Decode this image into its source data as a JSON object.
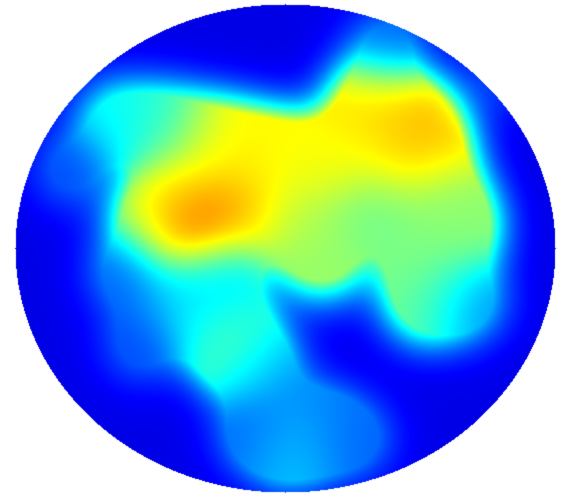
{
  "chart_data": {
    "type": "heatmap",
    "colormap": "jet",
    "shape": "circular",
    "background_color": "#ffffff",
    "value_range": [
      0,
      1
    ],
    "x_range": [
      0,
      1
    ],
    "y_range": [
      0,
      1
    ],
    "base_value": 0.1,
    "grid": false,
    "legend": "none",
    "points": [
      {
        "x": 0.66,
        "y": 0.2,
        "value": 0.66
      },
      {
        "x": 0.74,
        "y": 0.24,
        "value": 0.7
      },
      {
        "x": 0.76,
        "y": 0.31,
        "value": 0.68
      },
      {
        "x": 0.64,
        "y": 0.3,
        "value": 0.63
      },
      {
        "x": 0.55,
        "y": 0.32,
        "value": 0.62
      },
      {
        "x": 0.46,
        "y": 0.3,
        "value": 0.63
      },
      {
        "x": 0.37,
        "y": 0.28,
        "value": 0.63
      },
      {
        "x": 0.28,
        "y": 0.25,
        "value": 0.42
      },
      {
        "x": 0.19,
        "y": 0.24,
        "value": 0.38
      },
      {
        "x": 0.1,
        "y": 0.34,
        "value": 0.2
      },
      {
        "x": 0.32,
        "y": 0.38,
        "value": 0.62
      },
      {
        "x": 0.26,
        "y": 0.44,
        "value": 0.58
      },
      {
        "x": 0.33,
        "y": 0.45,
        "value": 0.9
      },
      {
        "x": 0.42,
        "y": 0.42,
        "value": 0.7
      },
      {
        "x": 0.52,
        "y": 0.44,
        "value": 0.55
      },
      {
        "x": 0.57,
        "y": 0.52,
        "value": 0.52
      },
      {
        "x": 0.66,
        "y": 0.42,
        "value": 0.48
      },
      {
        "x": 0.79,
        "y": 0.4,
        "value": 0.5
      },
      {
        "x": 0.82,
        "y": 0.46,
        "value": 0.52
      },
      {
        "x": 0.76,
        "y": 0.52,
        "value": 0.5
      },
      {
        "x": 0.76,
        "y": 0.61,
        "value": 0.48
      },
      {
        "x": 0.84,
        "y": 0.61,
        "value": 0.26
      },
      {
        "x": 0.38,
        "y": 0.55,
        "value": 0.32
      },
      {
        "x": 0.31,
        "y": 0.6,
        "value": 0.34
      },
      {
        "x": 0.38,
        "y": 0.65,
        "value": 0.4
      },
      {
        "x": 0.41,
        "y": 0.71,
        "value": 0.5
      },
      {
        "x": 0.46,
        "y": 0.75,
        "value": 0.26
      },
      {
        "x": 0.2,
        "y": 0.55,
        "value": 0.22
      },
      {
        "x": 0.23,
        "y": 0.7,
        "value": 0.2
      },
      {
        "x": 0.51,
        "y": 0.91,
        "value": 0.34
      },
      {
        "x": 0.56,
        "y": 0.86,
        "value": 0.26
      },
      {
        "x": 0.44,
        "y": 0.88,
        "value": 0.22
      },
      {
        "x": 0.63,
        "y": 0.89,
        "value": 0.22
      },
      {
        "x": 0.69,
        "y": 0.08,
        "value": 0.22
      },
      {
        "x": 0.9,
        "y": 0.15,
        "value": 0.16
      }
    ]
  }
}
